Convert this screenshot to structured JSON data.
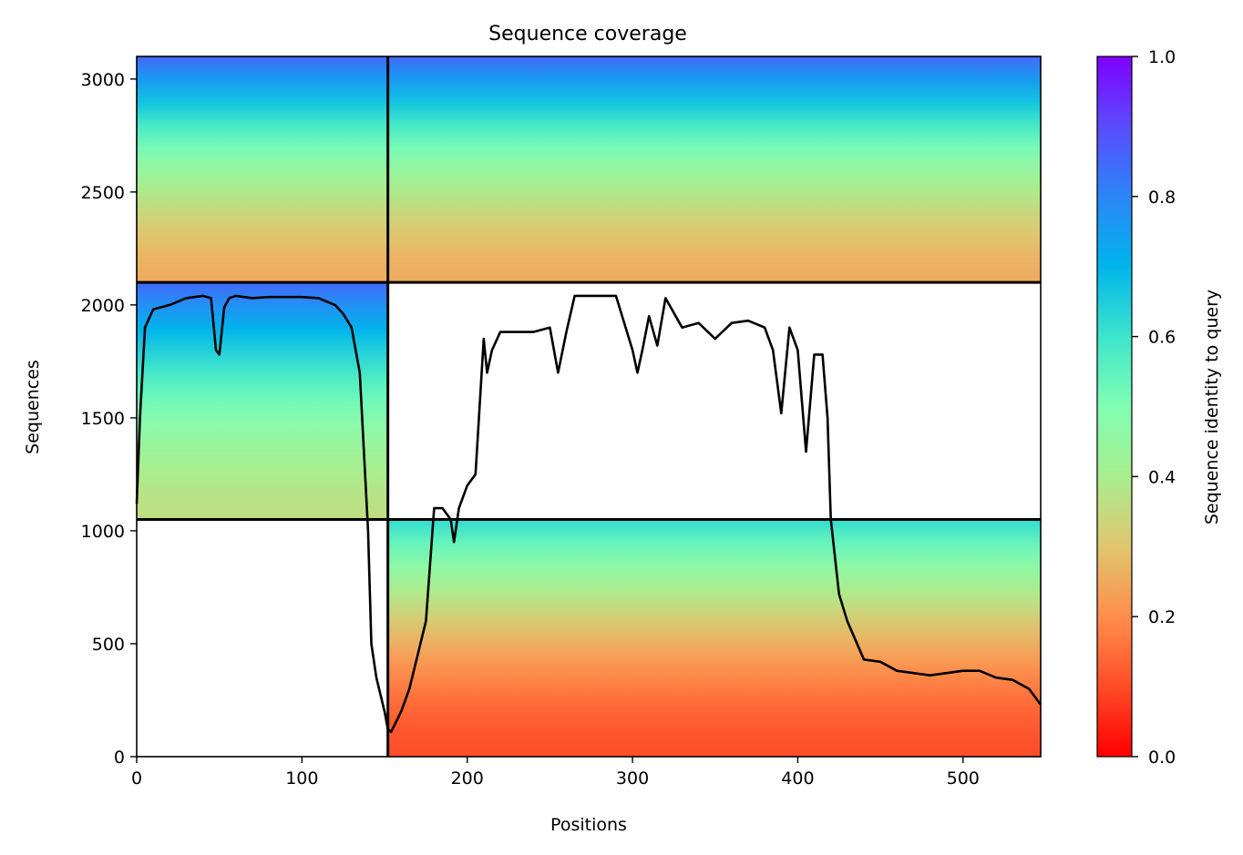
{
  "chart_data": {
    "type": "heatmap",
    "title": "Sequence coverage",
    "xlabel": "Positions",
    "ylabel": "Sequences",
    "xlim": [
      0,
      547
    ],
    "ylim": [
      0,
      3100
    ],
    "xticks": [
      0,
      100,
      200,
      300,
      400,
      500
    ],
    "yticks": [
      0,
      500,
      1000,
      1500,
      2000,
      2500,
      3000
    ],
    "colorbar": {
      "label": "Sequence identity to query",
      "range": [
        0.0,
        1.0
      ],
      "ticks": [
        "0.0",
        "0.2",
        "0.4",
        "0.6",
        "0.8",
        "1.0"
      ],
      "colormap": "rainbow"
    },
    "chain_boundaries_x": [
      152
    ],
    "chain_boundaries_y": [
      1050,
      2100
    ],
    "blocks": [
      {
        "x": [
          0,
          152
        ],
        "y": [
          2100,
          3100
        ],
        "identity_bottom": 0.25,
        "identity_top": 0.85
      },
      {
        "x": [
          152,
          547
        ],
        "y": [
          2100,
          3100
        ],
        "identity_bottom": 0.25,
        "identity_top": 0.85
      },
      {
        "x": [
          0,
          152
        ],
        "y": [
          1050,
          2100
        ],
        "identity_bottom": 0.36,
        "identity_top": 0.85
      },
      {
        "x": [
          152,
          547
        ],
        "y": [
          0,
          1050
        ],
        "identity_bottom": 0.1,
        "identity_top": 0.62
      }
    ],
    "coverage_line": {
      "x": [
        0,
        2,
        5,
        10,
        20,
        30,
        40,
        45,
        48,
        50,
        53,
        56,
        60,
        70,
        80,
        100,
        110,
        120,
        125,
        130,
        135,
        140,
        142,
        145,
        150,
        152,
        154,
        160,
        165,
        170,
        175,
        178,
        180,
        185,
        190,
        192,
        195,
        200,
        205,
        210,
        212,
        215,
        220,
        230,
        240,
        250,
        255,
        260,
        265,
        270,
        280,
        290,
        300,
        303,
        306,
        310,
        315,
        320,
        330,
        340,
        350,
        360,
        370,
        380,
        385,
        390,
        395,
        400,
        405,
        410,
        415,
        418,
        420,
        425,
        430,
        440,
        450,
        460,
        480,
        500,
        510,
        520,
        530,
        540,
        547
      ],
      "y": [
        1120,
        1500,
        1900,
        1980,
        2000,
        2030,
        2040,
        2030,
        1800,
        1780,
        1990,
        2030,
        2040,
        2030,
        2035,
        2035,
        2030,
        2000,
        1960,
        1900,
        1700,
        1000,
        500,
        350,
        200,
        120,
        110,
        200,
        300,
        450,
        600,
        900,
        1100,
        1100,
        1050,
        950,
        1100,
        1200,
        1250,
        1850,
        1700,
        1800,
        1880,
        1880,
        1880,
        1900,
        1700,
        1880,
        2040,
        2040,
        2040,
        2040,
        1800,
        1700,
        1800,
        1950,
        1820,
        2030,
        1900,
        1920,
        1850,
        1920,
        1930,
        1900,
        1800,
        1520,
        1900,
        1800,
        1350,
        1780,
        1780,
        1500,
        1050,
        720,
        600,
        430,
        420,
        380,
        360,
        380,
        380,
        350,
        340,
        300,
        230
      ]
    }
  }
}
